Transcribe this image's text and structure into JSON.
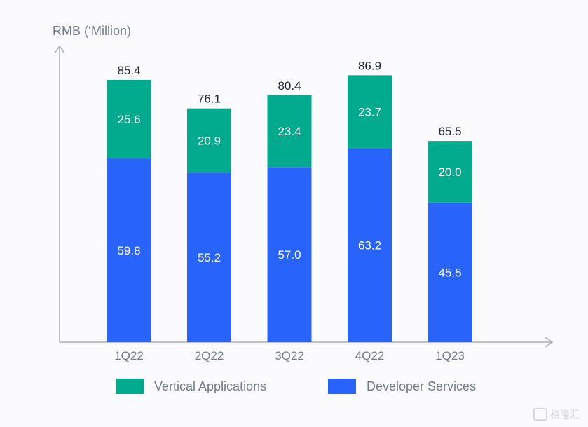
{
  "chart_data": {
    "type": "bar",
    "stacked": true,
    "title": "",
    "ylabel": "RMB (‘Million)",
    "xlabel": "",
    "categories": [
      "1Q22",
      "2Q22",
      "3Q22",
      "4Q22",
      "1Q23"
    ],
    "series": [
      {
        "name": "Developer Services",
        "color": "#2964fa",
        "values": [
          59.8,
          55.2,
          57.0,
          63.2,
          45.5
        ]
      },
      {
        "name": "Vertical Applications",
        "color": "#02ab8e",
        "values": [
          25.6,
          20.9,
          23.4,
          23.7,
          20.0
        ]
      }
    ],
    "totals": [
      85.4,
      76.1,
      80.4,
      86.9,
      65.5
    ],
    "ylim": [
      0,
      100
    ],
    "grid": false,
    "legend_position": "bottom"
  },
  "legend": [
    {
      "label": "Vertical Applications",
      "color": "#02ab8e"
    },
    {
      "label": "Developer Services",
      "color": "#2964fa"
    }
  ],
  "watermark": "格隆汇"
}
